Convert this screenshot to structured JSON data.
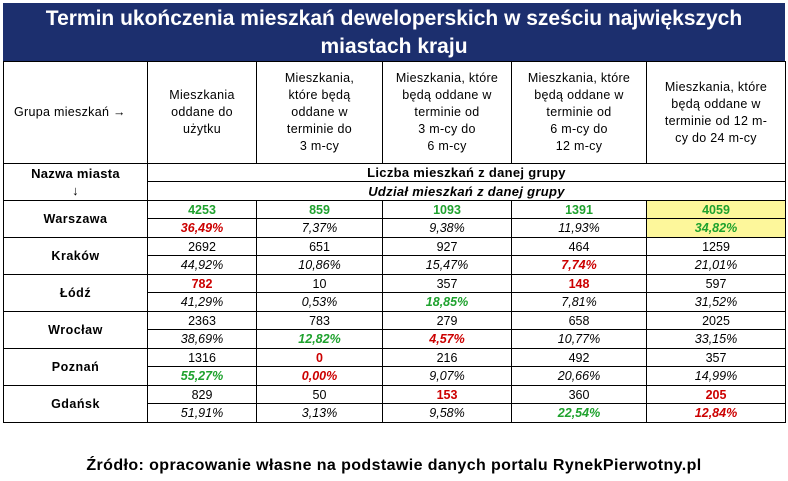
{
  "title_line1": "Termin ukończenia mieszkań deweloperskich w sześciu największych",
  "title_line2": "miastach kraju",
  "group_label": "Grupa mieszkań →",
  "headers": [
    [
      "Mieszkania",
      "oddane do",
      "użytku"
    ],
    [
      "Mieszkania,",
      "które będą",
      "oddane w",
      "terminie do",
      "3 m-cy"
    ],
    [
      "Mieszkania, które",
      "będą oddane w",
      "terminie od",
      "3 m-cy do",
      "6 m-cy"
    ],
    [
      "Mieszkania, które",
      "będą oddane w",
      "terminie od",
      "6 m-cy do",
      "12 m-cy"
    ],
    [
      "Mieszkania, które",
      "będą oddane w",
      "terminie od 12 m-",
      "cy do 24 m-cy"
    ]
  ],
  "city_header": [
    "Nazwa miasta",
    "↓"
  ],
  "count_caption": "Liczba mieszkań z danej grupy",
  "share_caption": "Udział mieszkań z danej grupy",
  "source": "Źródło: opracowanie własne na podstawie danych portalu RynekPierwotny.pl",
  "colors": {
    "title_bg": "#1c2f6e",
    "highlight": "#fdf79b",
    "green": "#1fa22e",
    "red": "#cc0000"
  },
  "chart_data": {
    "type": "table",
    "title": "Termin ukończenia mieszkań deweloperskich w sześciu największych miastach kraju",
    "columns": [
      "Mieszkania oddane do użytku",
      "Mieszkania, które będą oddane w terminie do 3 m-cy",
      "Mieszkania, które będą oddane w terminie od 3 m-cy do 6 m-cy",
      "Mieszkania, które będą oddane w terminie od 6 m-cy do 12 m-cy",
      "Mieszkania, które będą oddane w terminie od 12 m-cy do 24 m-cy"
    ],
    "rows": [
      {
        "city": "Warszawa",
        "counts": [
          "4253",
          "859",
          "1093",
          "1391",
          "4059"
        ],
        "shares": [
          "36,49%",
          "7,37%",
          "9,38%",
          "11,93%",
          "34,82%"
        ],
        "count_colors": [
          "green",
          "green",
          "green",
          "green",
          "green"
        ],
        "share_colors": [
          "red",
          "",
          "",
          "",
          "green"
        ],
        "highlight": [
          false,
          false,
          false,
          false,
          true
        ]
      },
      {
        "city": "Kraków",
        "counts": [
          "2692",
          "651",
          "927",
          "464",
          "1259"
        ],
        "shares": [
          "44,92%",
          "10,86%",
          "15,47%",
          "7,74%",
          "21,01%"
        ],
        "count_colors": [
          "",
          "",
          "",
          "",
          ""
        ],
        "share_colors": [
          "",
          "",
          "",
          "red",
          ""
        ],
        "highlight": [
          false,
          false,
          false,
          false,
          false
        ]
      },
      {
        "city": "Łódź",
        "counts": [
          "782",
          "10",
          "357",
          "148",
          "597"
        ],
        "shares": [
          "41,29%",
          "0,53%",
          "18,85%",
          "7,81%",
          "31,52%"
        ],
        "count_colors": [
          "red",
          "",
          "",
          "red",
          ""
        ],
        "share_colors": [
          "",
          "",
          "green",
          "",
          ""
        ],
        "highlight": [
          false,
          false,
          false,
          false,
          false
        ]
      },
      {
        "city": "Wrocław",
        "counts": [
          "2363",
          "783",
          "279",
          "658",
          "2025"
        ],
        "shares": [
          "38,69%",
          "12,82%",
          "4,57%",
          "10,77%",
          "33,15%"
        ],
        "count_colors": [
          "",
          "",
          "",
          "",
          ""
        ],
        "share_colors": [
          "",
          "green",
          "red",
          "",
          ""
        ],
        "highlight": [
          false,
          false,
          false,
          false,
          false
        ]
      },
      {
        "city": "Poznań",
        "counts": [
          "1316",
          "0",
          "216",
          "492",
          "357"
        ],
        "shares": [
          "55,27%",
          "0,00%",
          "9,07%",
          "20,66%",
          "14,99%"
        ],
        "count_colors": [
          "",
          "red",
          "",
          "",
          ""
        ],
        "share_colors": [
          "green",
          "red",
          "",
          "",
          ""
        ],
        "highlight": [
          false,
          false,
          false,
          false,
          false
        ]
      },
      {
        "city": "Gdańsk",
        "counts": [
          "829",
          "50",
          "153",
          "360",
          "205"
        ],
        "shares": [
          "51,91%",
          "3,13%",
          "9,58%",
          "22,54%",
          "12,84%"
        ],
        "count_colors": [
          "",
          "",
          "red",
          "",
          "red"
        ],
        "share_colors": [
          "",
          "",
          "",
          "green",
          "red"
        ],
        "highlight": [
          false,
          false,
          false,
          false,
          false
        ]
      }
    ]
  }
}
